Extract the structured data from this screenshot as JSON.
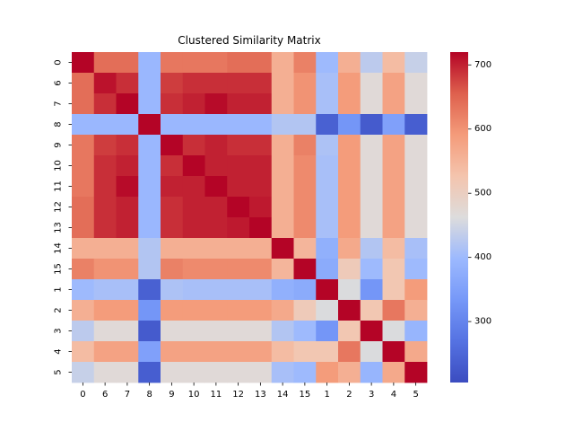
{
  "chart_data": {
    "type": "heatmap",
    "title": "Clustered Similarity Matrix",
    "xlabel": "",
    "ylabel": "",
    "x_categories": [
      "0",
      "6",
      "7",
      "8",
      "9",
      "10",
      "11",
      "12",
      "13",
      "14",
      "15",
      "1",
      "2",
      "3",
      "4",
      "5"
    ],
    "y_categories": [
      "0",
      "6",
      "7",
      "8",
      "9",
      "10",
      "11",
      "12",
      "13",
      "14",
      "15",
      "1",
      "2",
      "3",
      "4",
      "5"
    ],
    "colormap": "coolwarm",
    "vmin": 205,
    "vmax": 720,
    "colorbar_ticks": [
      300,
      400,
      500,
      600,
      700
    ],
    "values": [
      [
        720,
        640,
        640,
        395,
        630,
        630,
        630,
        640,
        640,
        560,
        620,
        400,
        560,
        430,
        540,
        440
      ],
      [
        640,
        710,
        690,
        395,
        680,
        690,
        690,
        690,
        690,
        560,
        600,
        410,
        590,
        470,
        580,
        470
      ],
      [
        640,
        690,
        720,
        395,
        690,
        700,
        715,
        700,
        700,
        560,
        600,
        410,
        590,
        470,
        580,
        470
      ],
      [
        395,
        395,
        395,
        720,
        395,
        395,
        395,
        395,
        395,
        420,
        420,
        240,
        330,
        230,
        350,
        235
      ],
      [
        630,
        680,
        690,
        395,
        720,
        690,
        700,
        690,
        690,
        560,
        620,
        415,
        590,
        470,
        580,
        470
      ],
      [
        630,
        690,
        700,
        395,
        690,
        720,
        700,
        700,
        700,
        560,
        610,
        410,
        590,
        470,
        580,
        470
      ],
      [
        630,
        690,
        715,
        395,
        700,
        700,
        720,
        700,
        700,
        560,
        610,
        410,
        590,
        470,
        580,
        470
      ],
      [
        640,
        690,
        700,
        395,
        690,
        700,
        700,
        720,
        705,
        560,
        610,
        410,
        590,
        470,
        580,
        470
      ],
      [
        640,
        690,
        700,
        395,
        690,
        700,
        700,
        705,
        720,
        560,
        610,
        410,
        590,
        470,
        580,
        470
      ],
      [
        560,
        560,
        560,
        420,
        560,
        560,
        560,
        560,
        560,
        720,
        550,
        380,
        570,
        420,
        540,
        410
      ],
      [
        620,
        600,
        600,
        420,
        620,
        610,
        610,
        610,
        610,
        550,
        720,
        370,
        510,
        400,
        520,
        400
      ],
      [
        400,
        410,
        410,
        240,
        415,
        410,
        410,
        410,
        410,
        380,
        370,
        720,
        460,
        330,
        520,
        590
      ],
      [
        560,
        590,
        590,
        330,
        590,
        590,
        590,
        590,
        590,
        570,
        510,
        460,
        720,
        520,
        630,
        560
      ],
      [
        430,
        470,
        470,
        230,
        470,
        470,
        470,
        470,
        470,
        420,
        400,
        330,
        520,
        720,
        460,
        390
      ],
      [
        540,
        580,
        580,
        350,
        580,
        580,
        580,
        580,
        580,
        540,
        520,
        520,
        630,
        460,
        720,
        570
      ],
      [
        440,
        470,
        470,
        235,
        470,
        470,
        470,
        470,
        470,
        410,
        400,
        590,
        560,
        390,
        570,
        720
      ]
    ]
  }
}
